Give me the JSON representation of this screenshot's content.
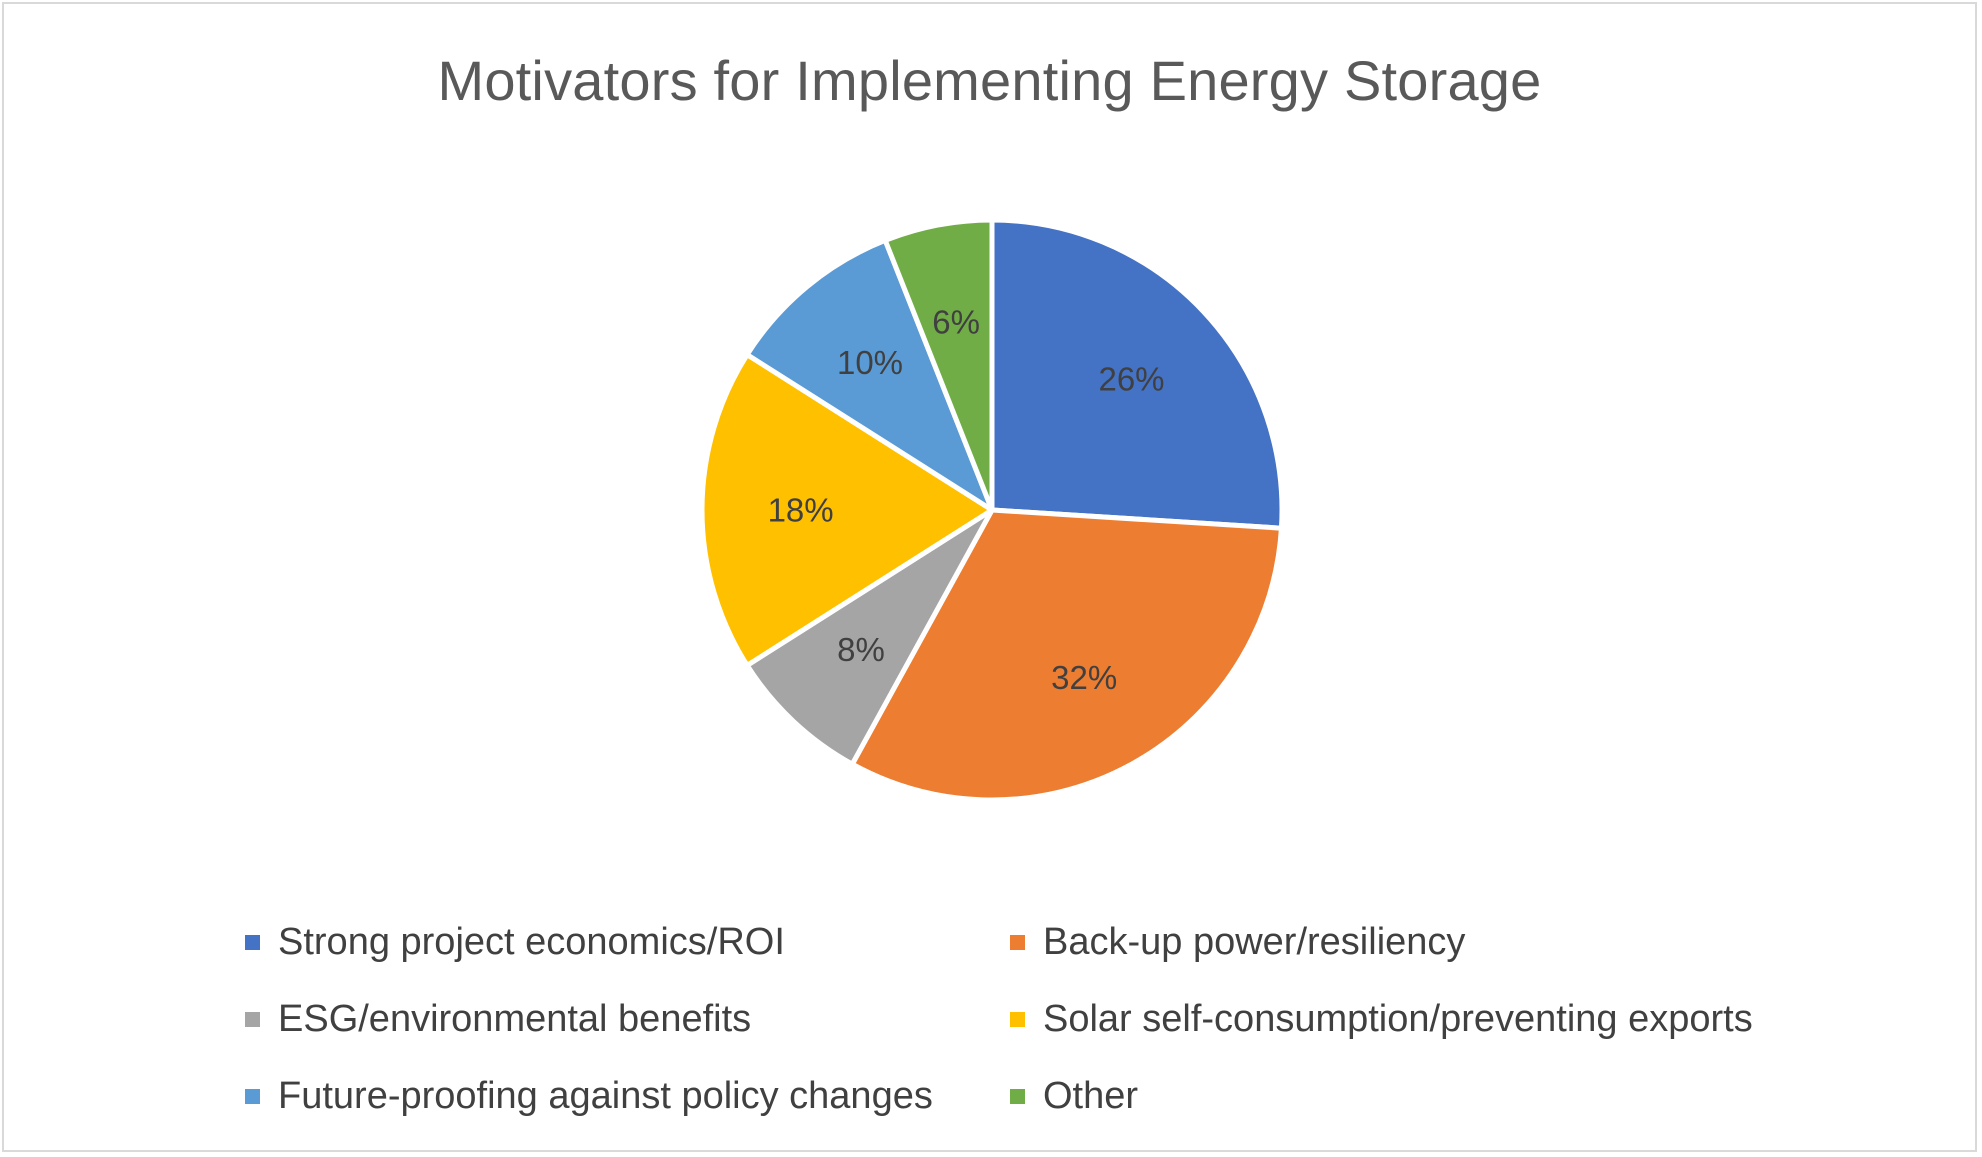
{
  "chart_data": {
    "type": "pie",
    "title": "Motivators for Implementing Energy Storage",
    "categories": [
      "Strong project economics/ROI",
      "Back-up power/resiliency",
      "ESG/environmental benefits",
      "Solar self-consumption/preventing exports",
      "Future-proofing against policy changes",
      "Other"
    ],
    "values": [
      26,
      32,
      8,
      18,
      10,
      6
    ],
    "data_labels": [
      "26%",
      "32%",
      "8%",
      "18%",
      "10%",
      "6%"
    ],
    "colors": [
      "#4472c4",
      "#ed7d31",
      "#a5a5a5",
      "#ffc000",
      "#5b9bd5",
      "#70ad47"
    ],
    "legend_position": "bottom"
  }
}
